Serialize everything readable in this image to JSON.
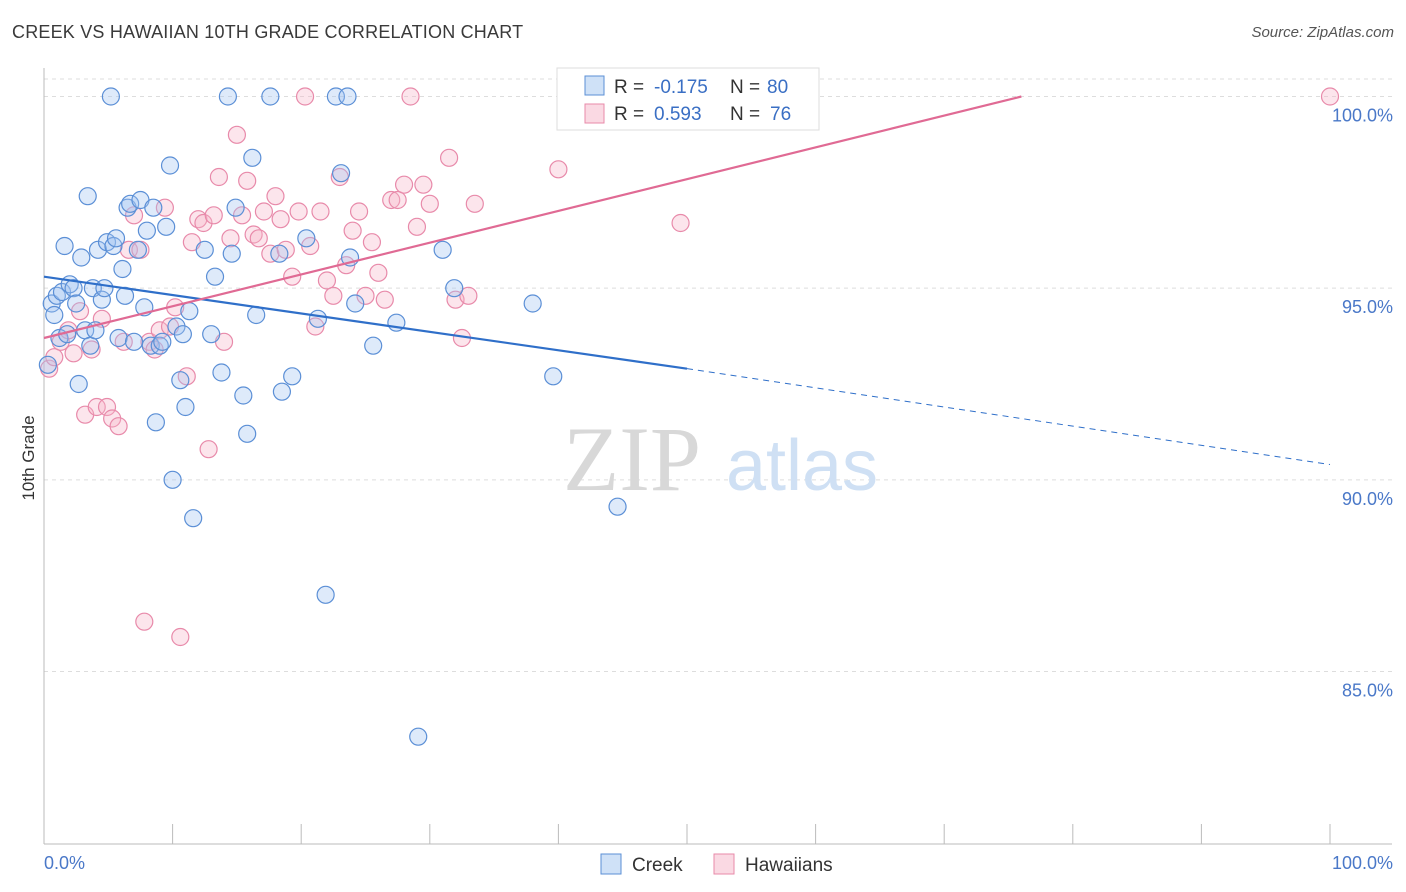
{
  "title": "CREEK VS HAWAIIAN 10TH GRADE CORRELATION CHART",
  "source": "Source: ZipAtlas.com",
  "watermark": {
    "zip": "ZIP",
    "atlas": "atlas"
  },
  "colors": {
    "creek": "#5b8fd6",
    "creek_fill": "rgba(160,195,240,0.35)",
    "creek_line": "#2f6fc9",
    "hawaiians": "#e88aaa",
    "hawaiians_fill": "rgba(245,180,200,0.35)",
    "hawaiians_line": "#e06a94",
    "grid": "#dddddd",
    "tick_label": "#4a78c8"
  },
  "legend_box": {
    "rows": [
      {
        "r_label": "R = ",
        "r_value": "-0.175",
        "n_label": "N = ",
        "n_value": "80"
      },
      {
        "r_label": "R = ",
        "r_value": "0.593",
        "n_label": "N = ",
        "n_value": "76"
      }
    ]
  },
  "chart_data": {
    "type": "scatter",
    "title": "CREEK VS HAWAIIAN 10TH GRADE CORRELATION CHART",
    "xlabel": "",
    "ylabel": "10th Grade",
    "xlim": [
      0,
      100
    ],
    "ylim": [
      80.5,
      100.9
    ],
    "x_tick_labels": [
      "0.0%",
      "100.0%"
    ],
    "y_ticks": [
      85,
      90,
      95,
      100
    ],
    "y_tick_labels": [
      "85.0%",
      "90.0%",
      "95.0%",
      "100.0%"
    ],
    "grid": true,
    "legend_position": "bottom",
    "series": [
      {
        "name": "Creek",
        "r": -0.175,
        "n": 80,
        "trend": {
          "x0": 0,
          "y0": 95.3,
          "x1": 50,
          "y1": 92.9,
          "x_dash_end": 100,
          "y_dash_end": 90.4
        },
        "points": [
          [
            0.3,
            93.0
          ],
          [
            0.6,
            94.6
          ],
          [
            0.8,
            94.3
          ],
          [
            1.0,
            94.8
          ],
          [
            1.2,
            93.7
          ],
          [
            1.4,
            94.9
          ],
          [
            1.6,
            96.1
          ],
          [
            1.8,
            93.8
          ],
          [
            2.0,
            95.1
          ],
          [
            2.3,
            95.0
          ],
          [
            2.5,
            94.6
          ],
          [
            2.7,
            92.5
          ],
          [
            2.9,
            95.8
          ],
          [
            3.2,
            93.9
          ],
          [
            3.4,
            97.4
          ],
          [
            3.6,
            93.5
          ],
          [
            3.8,
            95.0
          ],
          [
            4.0,
            93.9
          ],
          [
            4.2,
            96.0
          ],
          [
            4.5,
            94.7
          ],
          [
            4.7,
            95.0
          ],
          [
            4.9,
            96.2
          ],
          [
            5.2,
            100.0
          ],
          [
            5.4,
            96.1
          ],
          [
            5.6,
            96.3
          ],
          [
            5.8,
            93.7
          ],
          [
            6.1,
            95.5
          ],
          [
            6.3,
            94.8
          ],
          [
            6.5,
            97.1
          ],
          [
            6.7,
            97.2
          ],
          [
            7.0,
            93.6
          ],
          [
            7.3,
            96.0
          ],
          [
            7.5,
            97.3
          ],
          [
            7.8,
            94.5
          ],
          [
            8.0,
            96.5
          ],
          [
            8.3,
            93.5
          ],
          [
            8.5,
            97.1
          ],
          [
            8.7,
            91.5
          ],
          [
            9.0,
            93.5
          ],
          [
            9.2,
            93.6
          ],
          [
            9.5,
            96.6
          ],
          [
            9.8,
            98.2
          ],
          [
            10.0,
            90.0
          ],
          [
            10.3,
            94.0
          ],
          [
            10.6,
            92.6
          ],
          [
            10.8,
            93.8
          ],
          [
            11.0,
            91.9
          ],
          [
            11.3,
            94.4
          ],
          [
            11.6,
            89.0
          ],
          [
            12.5,
            96.0
          ],
          [
            13.0,
            93.8
          ],
          [
            13.3,
            95.3
          ],
          [
            13.8,
            92.8
          ],
          [
            14.3,
            100.0
          ],
          [
            14.6,
            95.9
          ],
          [
            14.9,
            97.1
          ],
          [
            15.5,
            92.2
          ],
          [
            15.8,
            91.2
          ],
          [
            16.2,
            98.4
          ],
          [
            16.5,
            94.3
          ],
          [
            17.6,
            100.0
          ],
          [
            18.3,
            95.9
          ],
          [
            18.5,
            92.3
          ],
          [
            19.3,
            92.7
          ],
          [
            20.4,
            96.3
          ],
          [
            21.3,
            94.2
          ],
          [
            21.9,
            87.0
          ],
          [
            22.7,
            100.0
          ],
          [
            23.1,
            98.0
          ],
          [
            23.6,
            100.0
          ],
          [
            23.8,
            95.8
          ],
          [
            24.2,
            94.6
          ],
          [
            25.6,
            93.5
          ],
          [
            27.4,
            94.1
          ],
          [
            29.1,
            83.3
          ],
          [
            31.0,
            96.0
          ],
          [
            31.9,
            95.0
          ],
          [
            38.0,
            94.6
          ],
          [
            39.6,
            92.7
          ],
          [
            44.6,
            89.3
          ]
        ]
      },
      {
        "name": "Hawaiians",
        "r": 0.593,
        "n": 76,
        "trend": {
          "x0": 0,
          "y0": 93.7,
          "x1": 76,
          "y1": 100.0
        },
        "points": [
          [
            0.4,
            92.9
          ],
          [
            0.8,
            93.2
          ],
          [
            1.3,
            93.6
          ],
          [
            1.9,
            93.9
          ],
          [
            2.3,
            93.3
          ],
          [
            2.8,
            94.4
          ],
          [
            3.2,
            91.7
          ],
          [
            3.7,
            93.4
          ],
          [
            4.1,
            91.9
          ],
          [
            4.5,
            94.2
          ],
          [
            4.9,
            91.9
          ],
          [
            5.3,
            91.6
          ],
          [
            5.8,
            91.4
          ],
          [
            6.2,
            93.6
          ],
          [
            6.6,
            96.0
          ],
          [
            7.0,
            96.9
          ],
          [
            7.5,
            96.0
          ],
          [
            7.8,
            86.3
          ],
          [
            8.2,
            93.6
          ],
          [
            8.6,
            93.4
          ],
          [
            9.0,
            93.9
          ],
          [
            9.4,
            97.1
          ],
          [
            9.8,
            94.0
          ],
          [
            10.2,
            94.5
          ],
          [
            10.6,
            85.9
          ],
          [
            11.1,
            92.7
          ],
          [
            11.5,
            96.2
          ],
          [
            12.0,
            96.8
          ],
          [
            12.4,
            96.7
          ],
          [
            12.8,
            90.8
          ],
          [
            13.2,
            96.9
          ],
          [
            13.6,
            97.9
          ],
          [
            14.0,
            93.6
          ],
          [
            14.5,
            96.3
          ],
          [
            15.0,
            99.0
          ],
          [
            15.4,
            96.9
          ],
          [
            15.8,
            97.8
          ],
          [
            16.3,
            96.4
          ],
          [
            16.7,
            96.3
          ],
          [
            17.1,
            97.0
          ],
          [
            17.6,
            95.9
          ],
          [
            18.0,
            97.4
          ],
          [
            18.4,
            96.8
          ],
          [
            18.8,
            96.0
          ],
          [
            19.3,
            95.3
          ],
          [
            19.8,
            97.0
          ],
          [
            20.3,
            100.0
          ],
          [
            20.7,
            96.1
          ],
          [
            21.1,
            94.0
          ],
          [
            21.5,
            97.0
          ],
          [
            22.0,
            95.2
          ],
          [
            22.5,
            94.8
          ],
          [
            23.0,
            97.9
          ],
          [
            23.5,
            95.6
          ],
          [
            24.0,
            96.5
          ],
          [
            24.5,
            97.0
          ],
          [
            25.0,
            94.8
          ],
          [
            25.5,
            96.2
          ],
          [
            26.0,
            95.4
          ],
          [
            26.5,
            94.7
          ],
          [
            27.0,
            97.3
          ],
          [
            27.5,
            97.3
          ],
          [
            28.0,
            97.7
          ],
          [
            28.5,
            100.0
          ],
          [
            29.0,
            96.6
          ],
          [
            29.5,
            97.7
          ],
          [
            30.0,
            97.2
          ],
          [
            31.5,
            98.4
          ],
          [
            32.0,
            94.7
          ],
          [
            32.5,
            93.7
          ],
          [
            33.0,
            94.8
          ],
          [
            33.5,
            97.2
          ],
          [
            40.0,
            98.1
          ],
          [
            49.5,
            96.7
          ],
          [
            57.0,
            100.0
          ],
          [
            100.0,
            100.0
          ]
        ]
      }
    ]
  }
}
